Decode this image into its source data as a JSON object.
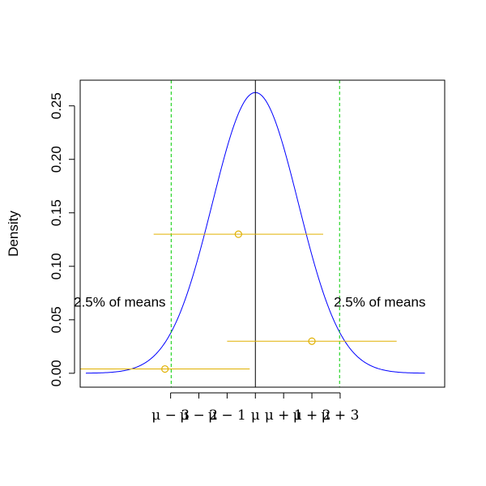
{
  "chart_data": {
    "type": "line",
    "title": "",
    "xlabel": "",
    "ylabel": "Density",
    "xlim": [
      -6.2,
      6.7
    ],
    "ylim": [
      -0.013,
      0.274
    ],
    "mu_line": 0,
    "y_ticks": [
      0.0,
      0.05,
      0.1,
      0.15,
      0.2,
      0.25
    ],
    "y_tick_labels": [
      "0.00",
      "0.05",
      "0.10",
      "0.15",
      "0.20",
      "0.25"
    ],
    "x_ticks": [
      -3,
      -2,
      -1,
      0,
      1,
      2,
      3
    ],
    "x_tick_labels": [
      "μ − 3",
      "μ − 2",
      "μ − 1",
      "μ",
      "μ + 1",
      "μ + 2",
      "μ + 3"
    ],
    "density_curve": {
      "sd": 1.52,
      "x_range": [
        -6,
        6
      ],
      "color": "#0000ff"
    },
    "cutoffs": {
      "values": [
        -2.98,
        2.98
      ],
      "color": "#00cc00"
    },
    "confidence_intervals": {
      "color": "#e0b000",
      "items": [
        {
          "center": -3.2,
          "lower": -6.2,
          "upper": -0.2,
          "y": 0.004
        },
        {
          "center": 2.0,
          "lower": -1.0,
          "upper": 5.0,
          "y": 0.03
        },
        {
          "center": -0.6,
          "lower": -3.6,
          "upper": 2.4,
          "y": 0.13
        }
      ]
    },
    "annotations": [
      {
        "text": "2.5% of means",
        "x": -4.8,
        "y": 0.067
      },
      {
        "text": "2.5% of means",
        "x": 4.4,
        "y": 0.067
      }
    ],
    "grid": false,
    "legend": "none"
  }
}
